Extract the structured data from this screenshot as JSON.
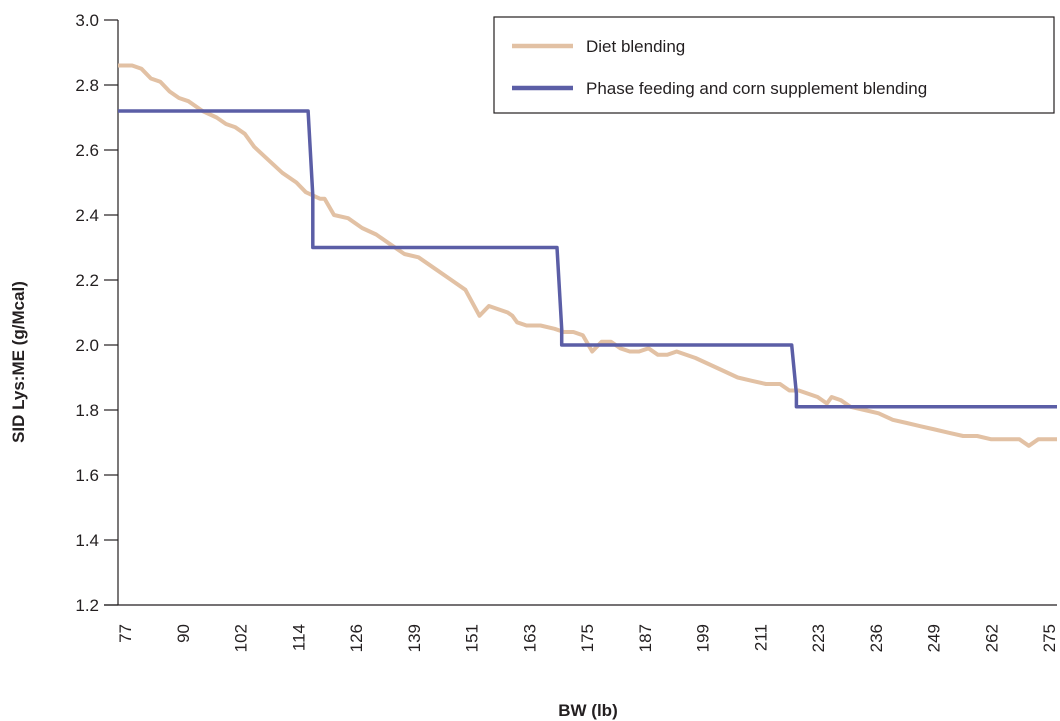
{
  "chart_data": {
    "type": "line",
    "title": "",
    "xlabel": "BW (lb)",
    "ylabel": "SID Lys:ME (g/Mcal)",
    "xlim": [
      77,
      277
    ],
    "ylim": [
      1.2,
      3.0
    ],
    "x_ticks": [
      "77",
      "90",
      "102",
      "114",
      "126",
      "139",
      "151",
      "163",
      "175",
      "187",
      "199",
      "211",
      "223",
      "236",
      "249",
      "262",
      "275"
    ],
    "y_ticks": [
      "1.2",
      "1.4",
      "1.6",
      "1.8",
      "2.0",
      "2.2",
      "2.4",
      "2.6",
      "2.8",
      "3.0"
    ],
    "grid": false,
    "legend_position": "top-right",
    "series": [
      {
        "name": "Diet blending",
        "color": "#e2c1a4",
        "x": [
          77,
          80,
          82,
          84,
          86,
          88,
          90,
          92,
          95,
          98,
          100,
          102,
          104,
          106,
          109,
          112,
          115,
          117,
          120,
          121,
          123,
          126,
          129,
          132,
          135,
          138,
          141,
          143,
          145,
          148,
          151,
          154,
          156,
          158,
          160,
          161,
          162,
          164,
          167,
          170,
          172,
          174,
          176,
          178,
          180,
          182,
          184,
          186,
          188,
          190,
          192,
          194,
          196,
          198,
          200,
          203,
          206,
          209,
          212,
          215,
          218,
          220,
          222,
          224,
          226,
          228,
          229,
          231,
          233,
          236,
          239,
          242,
          245,
          248,
          251,
          254,
          257,
          260,
          263,
          266,
          269,
          271,
          273,
          275,
          277
        ],
        "y": [
          2.86,
          2.86,
          2.85,
          2.82,
          2.81,
          2.78,
          2.76,
          2.75,
          2.72,
          2.7,
          2.68,
          2.67,
          2.65,
          2.61,
          2.57,
          2.53,
          2.5,
          2.47,
          2.45,
          2.45,
          2.4,
          2.39,
          2.36,
          2.34,
          2.31,
          2.28,
          2.27,
          2.25,
          2.23,
          2.2,
          2.17,
          2.09,
          2.12,
          2.11,
          2.1,
          2.09,
          2.07,
          2.06,
          2.06,
          2.05,
          2.04,
          2.04,
          2.03,
          1.98,
          2.01,
          2.01,
          1.99,
          1.98,
          1.98,
          1.99,
          1.97,
          1.97,
          1.98,
          1.97,
          1.96,
          1.94,
          1.92,
          1.9,
          1.89,
          1.88,
          1.88,
          1.86,
          1.86,
          1.85,
          1.84,
          1.82,
          1.84,
          1.83,
          1.81,
          1.8,
          1.79,
          1.77,
          1.76,
          1.75,
          1.74,
          1.73,
          1.72,
          1.72,
          1.71,
          1.71,
          1.71,
          1.69,
          1.71,
          1.71,
          1.71
        ]
      },
      {
        "name": "Phase feeding and corn supplement blending",
        "color": "#5b5ea6",
        "x": [
          77,
          77,
          117.5,
          118.5,
          118.5,
          170.5,
          171.5,
          171.5,
          220.5,
          221.5,
          221.5,
          277
        ],
        "y": [
          2.72,
          2.72,
          2.72,
          2.46,
          2.3,
          2.3,
          2.05,
          2.0,
          2.0,
          1.85,
          1.81,
          1.81
        ]
      }
    ]
  }
}
